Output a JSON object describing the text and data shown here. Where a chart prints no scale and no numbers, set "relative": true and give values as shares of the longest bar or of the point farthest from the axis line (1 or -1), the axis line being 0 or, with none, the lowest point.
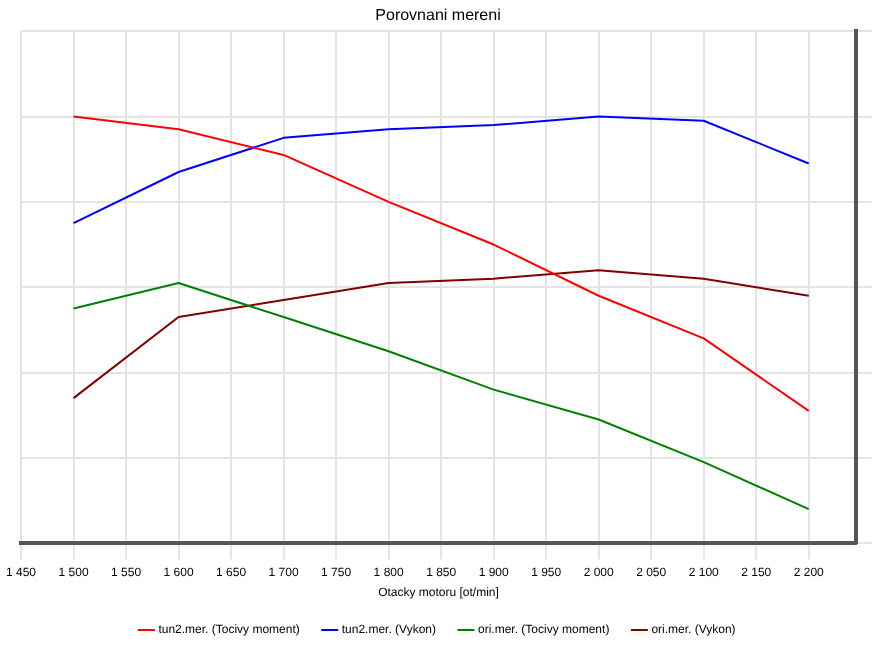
{
  "chart_data": {
    "type": "line",
    "title": "Porovnani mereni",
    "xlabel": "Otacky motoru [ot/min]",
    "x": [
      1500,
      1600,
      1700,
      1800,
      1900,
      2000,
      2100,
      2200
    ],
    "xlim": [
      1450,
      2245
    ],
    "xticks": [
      {
        "value": 1450,
        "label": "1 450"
      },
      {
        "value": 1500,
        "label": "1 500"
      },
      {
        "value": 1550,
        "label": "1 550"
      },
      {
        "value": 1600,
        "label": "1 600"
      },
      {
        "value": 1650,
        "label": "1 650"
      },
      {
        "value": 1700,
        "label": "1 700"
      },
      {
        "value": 1750,
        "label": "1 750"
      },
      {
        "value": 1800,
        "label": "1 800"
      },
      {
        "value": 1850,
        "label": "1 850"
      },
      {
        "value": 1900,
        "label": "1 900"
      },
      {
        "value": 1950,
        "label": "1 950"
      },
      {
        "value": 2000,
        "label": "2 000"
      },
      {
        "value": 2050,
        "label": "2 050"
      },
      {
        "value": 2100,
        "label": "2 100"
      },
      {
        "value": 2150,
        "label": "2 150"
      },
      {
        "value": 2200,
        "label": "2 200"
      }
    ],
    "relative": true,
    "series": [
      {
        "name": "tun2.mer. (Tocivy moment)",
        "color": "#ff0000",
        "values": [
          1.0,
          0.97,
          0.91,
          0.8,
          0.7,
          0.58,
          0.48,
          0.31
        ]
      },
      {
        "name": "tun2.mer. (Vykon)",
        "color": "#0000ff",
        "values": [
          0.75,
          0.87,
          0.95,
          0.97,
          0.98,
          1.0,
          0.99,
          0.89
        ]
      },
      {
        "name": "ori.mer. (Tocivy moment)",
        "color": "#008000",
        "values": [
          0.55,
          0.61,
          0.53,
          0.45,
          0.36,
          0.29,
          0.19,
          0.08
        ]
      },
      {
        "name": "ori.mer. (Vykon)",
        "color": "#800000",
        "values": [
          0.34,
          0.53,
          0.57,
          0.61,
          0.62,
          0.64,
          0.62,
          0.58
        ]
      }
    ],
    "grid": true,
    "legend": "bottom",
    "marker": "none",
    "line_style": "solid"
  }
}
